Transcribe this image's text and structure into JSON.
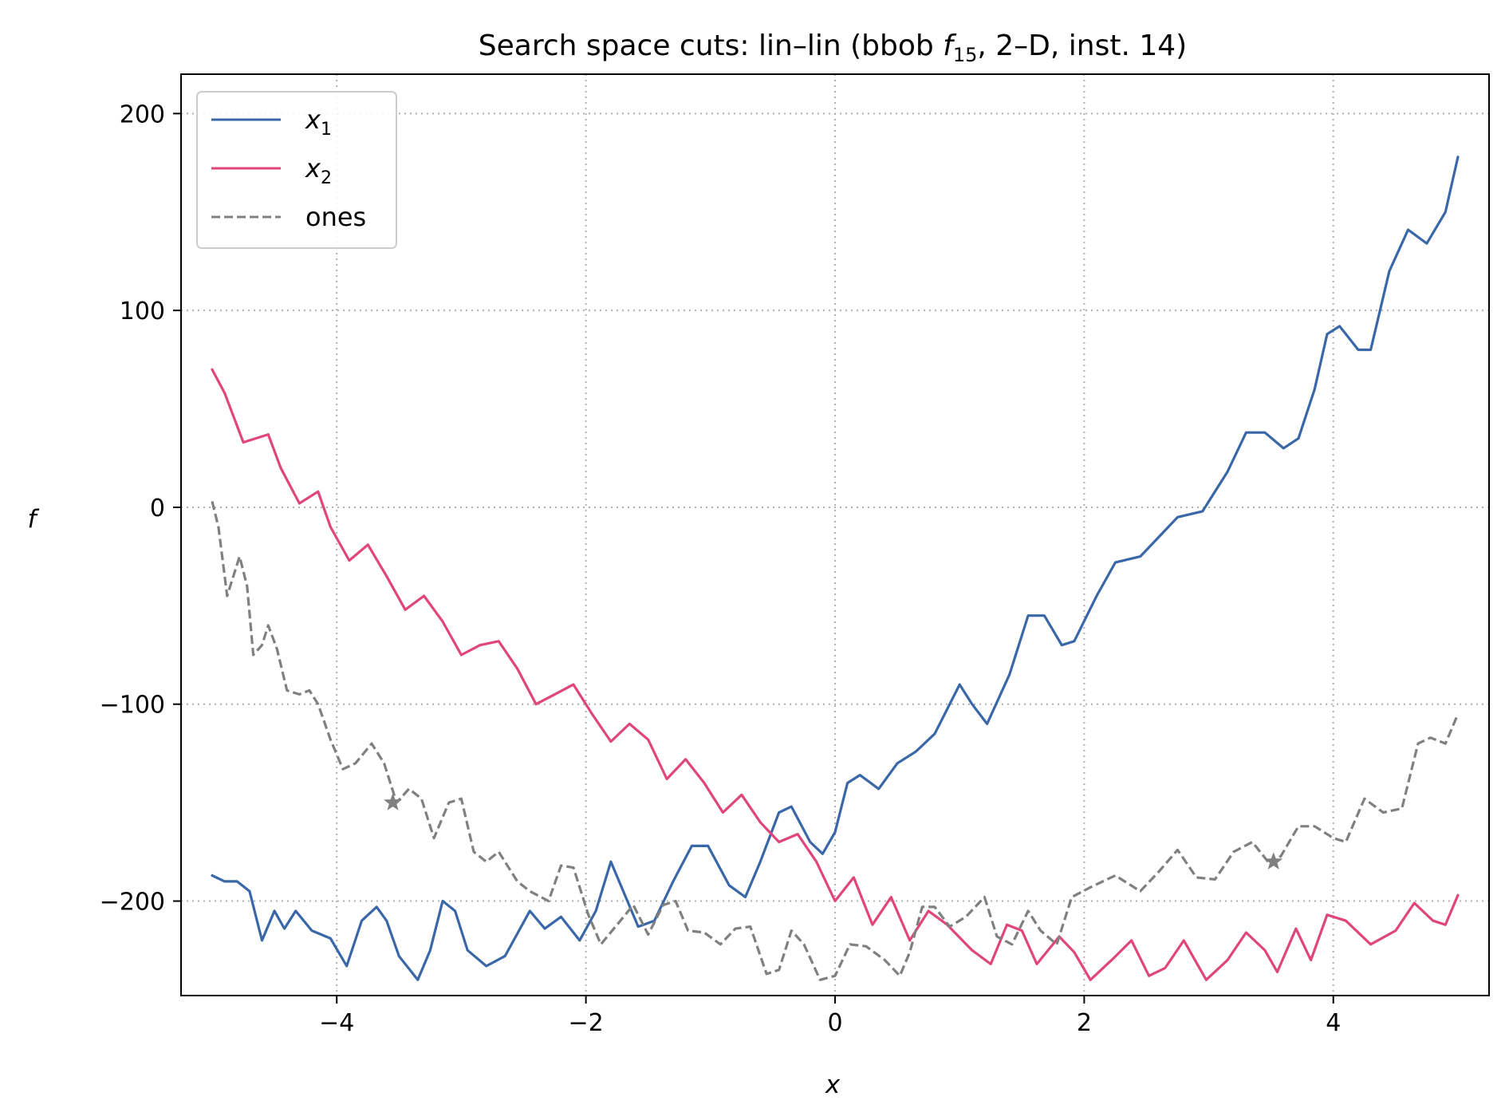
{
  "chart_data": {
    "type": "line",
    "title": "Search space cuts: lin–lin (bbob f15, 2–D, inst. 14)",
    "title_parts": {
      "before": "Search space cuts: lin–lin (bbob ",
      "f": "f",
      "sub": "15",
      "after": ", 2–D, inst. 14)"
    },
    "xlabel": "x",
    "ylabel": "f",
    "xlim": [
      -5.25,
      5.25
    ],
    "ylim": [
      -248,
      220
    ],
    "xticks": [
      -4,
      -2,
      0,
      2,
      4
    ],
    "xtick_labels": [
      "−4",
      "−2",
      "0",
      "2",
      "4"
    ],
    "yticks": [
      200,
      100,
      0,
      -100,
      -200
    ],
    "ytick_labels": [
      "200",
      "100",
      "0",
      "−100",
      "−200"
    ],
    "grid": true,
    "legend_placement": "top-left",
    "series": [
      {
        "name": "x1",
        "legend_var": "x",
        "legend_sub": "1",
        "color": "#3a67a8",
        "dash": "solid",
        "points": [
          [
            -5.0,
            -187
          ],
          [
            -4.9,
            -190
          ],
          [
            -4.8,
            -190
          ],
          [
            -4.7,
            -195
          ],
          [
            -4.6,
            -220
          ],
          [
            -4.5,
            -205
          ],
          [
            -4.42,
            -214
          ],
          [
            -4.33,
            -205
          ],
          [
            -4.2,
            -215
          ],
          [
            -4.05,
            -219
          ],
          [
            -3.92,
            -233
          ],
          [
            -3.8,
            -210
          ],
          [
            -3.68,
            -203
          ],
          [
            -3.6,
            -210
          ],
          [
            -3.5,
            -228
          ],
          [
            -3.35,
            -240
          ],
          [
            -3.25,
            -225
          ],
          [
            -3.15,
            -200
          ],
          [
            -3.05,
            -205
          ],
          [
            -2.95,
            -225
          ],
          [
            -2.8,
            -233
          ],
          [
            -2.65,
            -228
          ],
          [
            -2.45,
            -205
          ],
          [
            -2.33,
            -214
          ],
          [
            -2.2,
            -208
          ],
          [
            -2.05,
            -220
          ],
          [
            -1.92,
            -205
          ],
          [
            -1.8,
            -180
          ],
          [
            -1.7,
            -195
          ],
          [
            -1.58,
            -213
          ],
          [
            -1.45,
            -210
          ],
          [
            -1.3,
            -190
          ],
          [
            -1.15,
            -172
          ],
          [
            -1.02,
            -172
          ],
          [
            -0.85,
            -192
          ],
          [
            -0.72,
            -198
          ],
          [
            -0.6,
            -180
          ],
          [
            -0.45,
            -155
          ],
          [
            -0.35,
            -152
          ],
          [
            -0.2,
            -170
          ],
          [
            -0.1,
            -176
          ],
          [
            0.0,
            -165
          ],
          [
            0.1,
            -140
          ],
          [
            0.2,
            -136
          ],
          [
            0.35,
            -143
          ],
          [
            0.5,
            -130
          ],
          [
            0.65,
            -124
          ],
          [
            0.8,
            -115
          ],
          [
            1.0,
            -90
          ],
          [
            1.1,
            -100
          ],
          [
            1.22,
            -110
          ],
          [
            1.4,
            -85
          ],
          [
            1.55,
            -55
          ],
          [
            1.68,
            -55
          ],
          [
            1.82,
            -70
          ],
          [
            1.92,
            -68
          ],
          [
            2.1,
            -45
          ],
          [
            2.25,
            -28
          ],
          [
            2.45,
            -25
          ],
          [
            2.6,
            -15
          ],
          [
            2.75,
            -5
          ],
          [
            2.95,
            -2
          ],
          [
            3.15,
            18
          ],
          [
            3.3,
            38
          ],
          [
            3.45,
            38
          ],
          [
            3.6,
            30
          ],
          [
            3.72,
            35
          ],
          [
            3.85,
            60
          ],
          [
            3.95,
            88
          ],
          [
            4.05,
            92
          ],
          [
            4.2,
            80
          ],
          [
            4.3,
            80
          ],
          [
            4.45,
            120
          ],
          [
            4.6,
            141
          ],
          [
            4.75,
            134
          ],
          [
            4.9,
            150
          ],
          [
            5.0,
            178
          ]
        ]
      },
      {
        "name": "x2",
        "legend_var": "x",
        "legend_sub": "2",
        "color": "#e0457b",
        "dash": "solid",
        "points": [
          [
            -5.0,
            70
          ],
          [
            -4.9,
            58
          ],
          [
            -4.75,
            33
          ],
          [
            -4.55,
            37
          ],
          [
            -4.45,
            20
          ],
          [
            -4.3,
            2
          ],
          [
            -4.15,
            8
          ],
          [
            -4.05,
            -10
          ],
          [
            -3.9,
            -27
          ],
          [
            -3.75,
            -19
          ],
          [
            -3.6,
            -35
          ],
          [
            -3.45,
            -52
          ],
          [
            -3.3,
            -45
          ],
          [
            -3.15,
            -58
          ],
          [
            -3.0,
            -75
          ],
          [
            -2.85,
            -70
          ],
          [
            -2.7,
            -68
          ],
          [
            -2.55,
            -82
          ],
          [
            -2.4,
            -100
          ],
          [
            -2.25,
            -95
          ],
          [
            -2.1,
            -90
          ],
          [
            -1.95,
            -105
          ],
          [
            -1.8,
            -119
          ],
          [
            -1.65,
            -110
          ],
          [
            -1.5,
            -118
          ],
          [
            -1.35,
            -138
          ],
          [
            -1.2,
            -128
          ],
          [
            -1.05,
            -140
          ],
          [
            -0.9,
            -155
          ],
          [
            -0.75,
            -146
          ],
          [
            -0.6,
            -160
          ],
          [
            -0.45,
            -170
          ],
          [
            -0.3,
            -166
          ],
          [
            -0.15,
            -180
          ],
          [
            0.0,
            -200
          ],
          [
            0.15,
            -188
          ],
          [
            0.3,
            -212
          ],
          [
            0.45,
            -198
          ],
          [
            0.6,
            -220
          ],
          [
            0.75,
            -205
          ],
          [
            0.9,
            -212
          ],
          [
            1.1,
            -225
          ],
          [
            1.25,
            -232
          ],
          [
            1.38,
            -212
          ],
          [
            1.5,
            -215
          ],
          [
            1.62,
            -232
          ],
          [
            1.8,
            -218
          ],
          [
            1.92,
            -226
          ],
          [
            2.05,
            -240
          ],
          [
            2.22,
            -230
          ],
          [
            2.38,
            -220
          ],
          [
            2.52,
            -238
          ],
          [
            2.65,
            -234
          ],
          [
            2.8,
            -220
          ],
          [
            2.98,
            -240
          ],
          [
            3.15,
            -230
          ],
          [
            3.3,
            -216
          ],
          [
            3.45,
            -225
          ],
          [
            3.55,
            -236
          ],
          [
            3.7,
            -214
          ],
          [
            3.82,
            -230
          ],
          [
            3.95,
            -207
          ],
          [
            4.1,
            -210
          ],
          [
            4.3,
            -222
          ],
          [
            4.5,
            -215
          ],
          [
            4.65,
            -201
          ],
          [
            4.8,
            -210
          ],
          [
            4.9,
            -212
          ],
          [
            5.0,
            -197
          ]
        ]
      },
      {
        "name": "ones",
        "color": "#808080",
        "dash": "dashed",
        "points": [
          [
            -5.0,
            3
          ],
          [
            -4.95,
            -10
          ],
          [
            -4.88,
            -45
          ],
          [
            -4.83,
            -35
          ],
          [
            -4.78,
            -25
          ],
          [
            -4.72,
            -40
          ],
          [
            -4.67,
            -75
          ],
          [
            -4.6,
            -70
          ],
          [
            -4.55,
            -60
          ],
          [
            -4.48,
            -72
          ],
          [
            -4.4,
            -93
          ],
          [
            -4.3,
            -95
          ],
          [
            -4.22,
            -93
          ],
          [
            -4.15,
            -100
          ],
          [
            -4.05,
            -118
          ],
          [
            -3.95,
            -133
          ],
          [
            -3.85,
            -130
          ],
          [
            -3.72,
            -120
          ],
          [
            -3.62,
            -130
          ],
          [
            -3.52,
            -150
          ],
          [
            -3.42,
            -143
          ],
          [
            -3.32,
            -148
          ],
          [
            -3.22,
            -168
          ],
          [
            -3.1,
            -150
          ],
          [
            -3.0,
            -148
          ],
          [
            -2.9,
            -175
          ],
          [
            -2.8,
            -180
          ],
          [
            -2.7,
            -175
          ],
          [
            -2.55,
            -190
          ],
          [
            -2.45,
            -195
          ],
          [
            -2.3,
            -200
          ],
          [
            -2.2,
            -182
          ],
          [
            -2.1,
            -183
          ],
          [
            -1.98,
            -207
          ],
          [
            -1.88,
            -222
          ],
          [
            -1.75,
            -212
          ],
          [
            -1.62,
            -202
          ],
          [
            -1.5,
            -217
          ],
          [
            -1.38,
            -202
          ],
          [
            -1.28,
            -200
          ],
          [
            -1.18,
            -215
          ],
          [
            -1.05,
            -216
          ],
          [
            -0.92,
            -222
          ],
          [
            -0.8,
            -214
          ],
          [
            -0.68,
            -213
          ],
          [
            -0.55,
            -237
          ],
          [
            -0.45,
            -235
          ],
          [
            -0.35,
            -215
          ],
          [
            -0.25,
            -222
          ],
          [
            -0.12,
            -240
          ],
          [
            0.0,
            -238
          ],
          [
            0.12,
            -222
          ],
          [
            0.25,
            -223
          ],
          [
            0.4,
            -230
          ],
          [
            0.52,
            -238
          ],
          [
            0.6,
            -226
          ],
          [
            0.7,
            -203
          ],
          [
            0.8,
            -203
          ],
          [
            0.92,
            -213
          ],
          [
            1.05,
            -208
          ],
          [
            1.2,
            -198
          ],
          [
            1.3,
            -218
          ],
          [
            1.42,
            -222
          ],
          [
            1.55,
            -205
          ],
          [
            1.65,
            -215
          ],
          [
            1.78,
            -222
          ],
          [
            1.9,
            -198
          ],
          [
            2.05,
            -193
          ],
          [
            2.25,
            -187
          ],
          [
            2.45,
            -195
          ],
          [
            2.6,
            -185
          ],
          [
            2.75,
            -174
          ],
          [
            2.9,
            -188
          ],
          [
            3.05,
            -189
          ],
          [
            3.2,
            -175
          ],
          [
            3.35,
            -170
          ],
          [
            3.5,
            -182
          ],
          [
            3.58,
            -177
          ],
          [
            3.72,
            -162
          ],
          [
            3.85,
            -162
          ],
          [
            4.0,
            -168
          ],
          [
            4.1,
            -170
          ],
          [
            4.25,
            -148
          ],
          [
            4.4,
            -155
          ],
          [
            4.55,
            -153
          ],
          [
            4.68,
            -120
          ],
          [
            4.78,
            -117
          ],
          [
            4.9,
            -120
          ],
          [
            5.0,
            -105
          ]
        ]
      }
    ],
    "markers": [
      {
        "series": "ones",
        "symbol": "star",
        "x": -3.55,
        "y": -150
      },
      {
        "series": "ones",
        "symbol": "star",
        "x": 3.52,
        "y": -180
      }
    ]
  }
}
